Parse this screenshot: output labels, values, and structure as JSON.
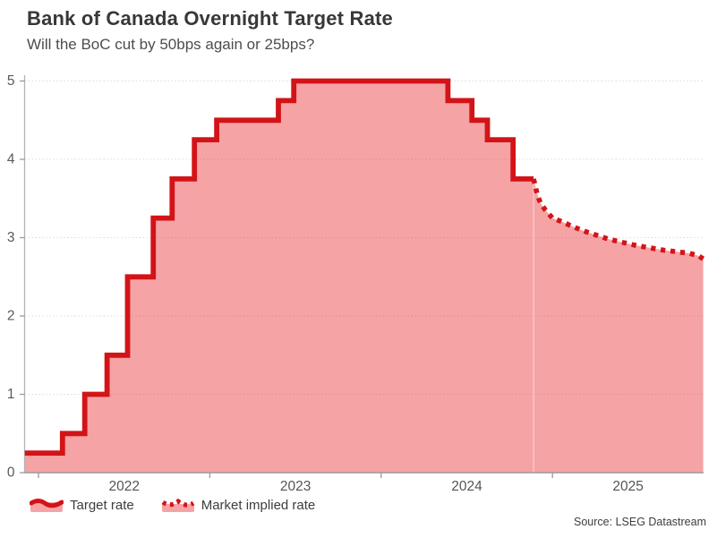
{
  "page": {
    "title": "Bank of Canada Overnight Target Rate",
    "subtitle": "Will the BoC cut by 50bps again or 25bps?",
    "source": "Source: LSEG Datastream"
  },
  "legend": {
    "items": [
      {
        "label": "Target rate",
        "style": "solid"
      },
      {
        "label": "Market implied rate",
        "style": "dotted"
      }
    ]
  },
  "chart_data": {
    "type": "area",
    "title": "Bank of Canada Overnight Target Rate",
    "subtitle": "Will the BoC cut by 50bps again or 25bps?",
    "xlabel": "",
    "ylabel": "",
    "ylim": [
      0,
      5
    ],
    "yticks": [
      0,
      1,
      2,
      3,
      4,
      5
    ],
    "xticks": [
      2022,
      2023,
      2024,
      2025
    ],
    "x_range": [
      2021.92,
      2025.88
    ],
    "grid": "horizontal-dotted",
    "legend_position": "bottom-left",
    "colors": {
      "line": "#d21418",
      "fill_rgba": "rgba(230,25,30,0.40)",
      "grid": "#dcdcdc",
      "axis": "#9a9a9a",
      "axis_y": "#b3b3b3",
      "tick_text": "#595959"
    },
    "series": [
      {
        "name": "Target rate",
        "type": "step",
        "points": [
          [
            2021.92,
            0.25
          ],
          [
            2022.14,
            0.5
          ],
          [
            2022.27,
            1.0
          ],
          [
            2022.4,
            1.5
          ],
          [
            2022.52,
            2.5
          ],
          [
            2022.67,
            3.25
          ],
          [
            2022.78,
            3.75
          ],
          [
            2022.91,
            4.25
          ],
          [
            2023.04,
            4.5
          ],
          [
            2023.4,
            4.75
          ],
          [
            2023.49,
            5.0
          ],
          [
            2024.39,
            4.75
          ],
          [
            2024.53,
            4.5
          ],
          [
            2024.62,
            4.25
          ],
          [
            2024.77,
            3.75
          ]
        ],
        "end_x": 2024.89
      },
      {
        "name": "Market implied rate",
        "type": "line-dotted",
        "points": [
          [
            2024.89,
            3.75
          ],
          [
            2024.91,
            3.56
          ],
          [
            2024.93,
            3.44
          ],
          [
            2024.96,
            3.35
          ],
          [
            2025.0,
            3.25
          ],
          [
            2025.06,
            3.2
          ],
          [
            2025.12,
            3.14
          ],
          [
            2025.19,
            3.08
          ],
          [
            2025.26,
            3.03
          ],
          [
            2025.33,
            2.98
          ],
          [
            2025.41,
            2.94
          ],
          [
            2025.49,
            2.9
          ],
          [
            2025.57,
            2.87
          ],
          [
            2025.65,
            2.84
          ],
          [
            2025.73,
            2.82
          ],
          [
            2025.8,
            2.8
          ],
          [
            2025.85,
            2.77
          ],
          [
            2025.88,
            2.73
          ]
        ]
      }
    ]
  }
}
